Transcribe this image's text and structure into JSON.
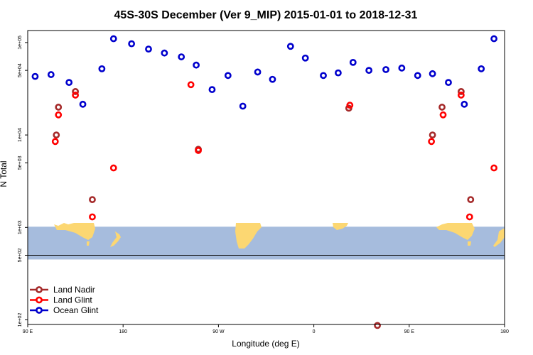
{
  "chart_data": {
    "type": "scatter",
    "title": "45S-30S December (Ver 9_MIP)   2015-01-01 to 2018-12-31",
    "xlabel": "Longitude (deg E)",
    "ylabel": "N Total",
    "xlim": [
      90,
      540
    ],
    "ylim_log10": [
      1.95,
      5.13
    ],
    "y_scale": "log",
    "x_ticks": [
      {
        "value": 90,
        "label": "90 E"
      },
      {
        "value": 180,
        "label": "180"
      },
      {
        "value": 270,
        "label": "90 W"
      },
      {
        "value": 360,
        "label": "0"
      },
      {
        "value": 450,
        "label": "90 E"
      },
      {
        "value": 540,
        "label": "180"
      }
    ],
    "y_ticks": [
      {
        "value": 100,
        "label": "1e+02"
      },
      {
        "value": 500,
        "label": "5e+02"
      },
      {
        "value": 1000,
        "label": "1e+03"
      },
      {
        "value": 5000,
        "label": "5e+03"
      },
      {
        "value": 10000,
        "label": "1e+04"
      },
      {
        "value": 50000,
        "label": "5e+04"
      },
      {
        "value": 100000,
        "label": "1e+05"
      }
    ],
    "reference_line": {
      "value": 500
    },
    "map_band": {
      "y_range": [
        450,
        1000
      ],
      "water_color": "#a6bcdd",
      "land_color": "#fcd772"
    },
    "legend_position": "bottom-left",
    "grid": false,
    "series": [
      {
        "name": "Land Nadir",
        "color": "#a52a2a",
        "points": [
          {
            "x": 119,
            "y": 20000
          },
          {
            "x": 117,
            "y": 10000
          },
          {
            "x": 135,
            "y": 29500
          },
          {
            "x": 151,
            "y": 2000
          },
          {
            "x": 251,
            "y": 7000
          },
          {
            "x": 393,
            "y": 19500
          },
          {
            "x": 420,
            "y": 87
          },
          {
            "x": 472,
            "y": 10000
          },
          {
            "x": 481,
            "y": 20000
          },
          {
            "x": 499,
            "y": 29500
          },
          {
            "x": 508,
            "y": 2000
          }
        ]
      },
      {
        "name": "Land Glint",
        "color": "#ff0000",
        "points": [
          {
            "x": 119,
            "y": 16500
          },
          {
            "x": 116,
            "y": 8500
          },
          {
            "x": 135,
            "y": 27000
          },
          {
            "x": 151,
            "y": 1300
          },
          {
            "x": 171,
            "y": 4400
          },
          {
            "x": 244,
            "y": 35000
          },
          {
            "x": 251,
            "y": 6800
          },
          {
            "x": 394,
            "y": 21000
          },
          {
            "x": 471,
            "y": 8500
          },
          {
            "x": 482,
            "y": 16500
          },
          {
            "x": 499,
            "y": 27000
          },
          {
            "x": 507,
            "y": 1300
          },
          {
            "x": 530,
            "y": 4400
          }
        ]
      },
      {
        "name": "Ocean Glint",
        "color": "#0000cd",
        "points": [
          {
            "x": 97,
            "y": 43000
          },
          {
            "x": 112,
            "y": 45000
          },
          {
            "x": 129,
            "y": 37000
          },
          {
            "x": 142,
            "y": 21500
          },
          {
            "x": 160,
            "y": 52000
          },
          {
            "x": 171,
            "y": 110000
          },
          {
            "x": 188,
            "y": 97000
          },
          {
            "x": 204,
            "y": 85000
          },
          {
            "x": 219,
            "y": 77000
          },
          {
            "x": 235,
            "y": 70000
          },
          {
            "x": 249,
            "y": 57000
          },
          {
            "x": 264,
            "y": 31000
          },
          {
            "x": 279,
            "y": 44000
          },
          {
            "x": 293,
            "y": 20500
          },
          {
            "x": 307,
            "y": 48000
          },
          {
            "x": 321,
            "y": 40000
          },
          {
            "x": 338,
            "y": 91000
          },
          {
            "x": 352,
            "y": 68000
          },
          {
            "x": 369,
            "y": 44000
          },
          {
            "x": 383,
            "y": 47000
          },
          {
            "x": 397,
            "y": 61000
          },
          {
            "x": 412,
            "y": 50000
          },
          {
            "x": 428,
            "y": 51000
          },
          {
            "x": 443,
            "y": 53000
          },
          {
            "x": 458,
            "y": 44000
          },
          {
            "x": 472,
            "y": 46000
          },
          {
            "x": 487,
            "y": 37000
          },
          {
            "x": 502,
            "y": 21500
          },
          {
            "x": 518,
            "y": 52000
          },
          {
            "x": 530,
            "y": 110000
          }
        ]
      }
    ]
  }
}
